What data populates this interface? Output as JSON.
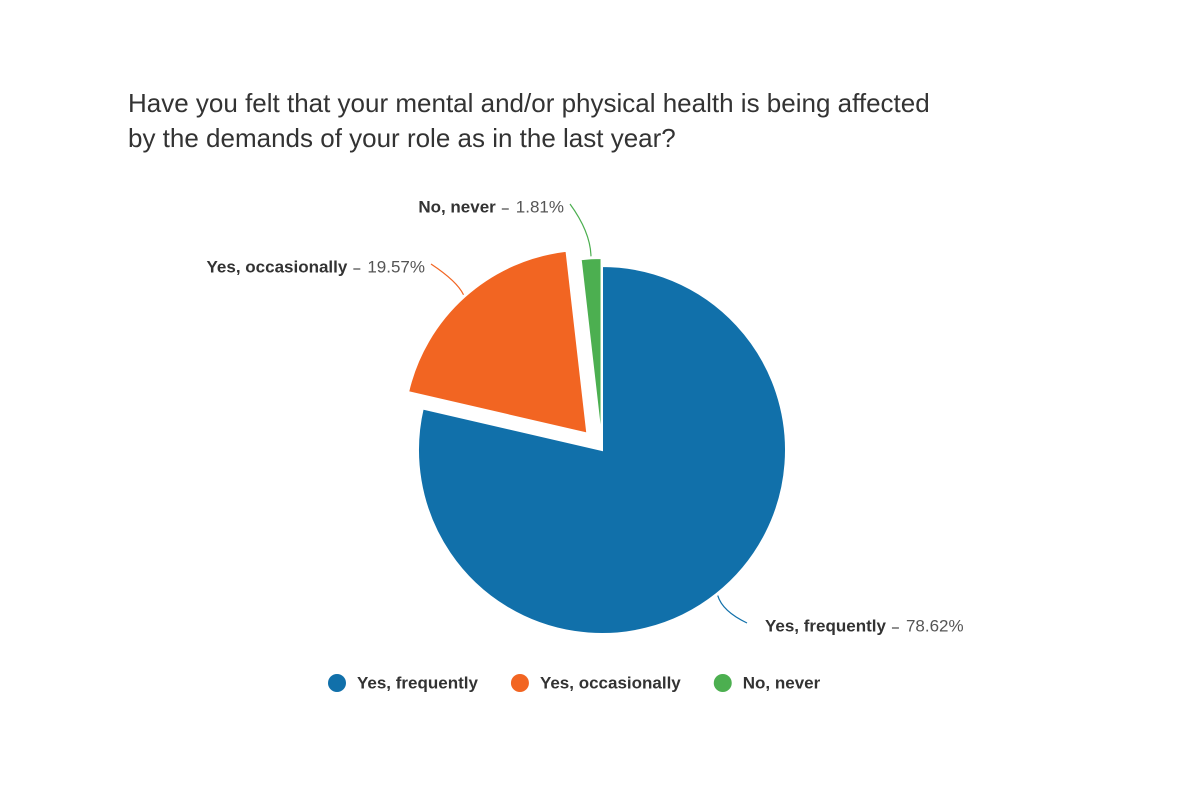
{
  "chart_data": {
    "type": "pie",
    "title": "Have you felt that your mental and/or physical health is being affected by the demands of your role as in the last year?",
    "categories": [
      "Yes, frequently",
      "Yes, occasionally",
      "No, never"
    ],
    "values": [
      78.62,
      19.57,
      1.81
    ],
    "value_labels": [
      "78.62%",
      "19.57%",
      "1.81%"
    ],
    "colors": [
      "#1170aa",
      "#f26522",
      "#4caf50"
    ],
    "legend": "bottom"
  }
}
